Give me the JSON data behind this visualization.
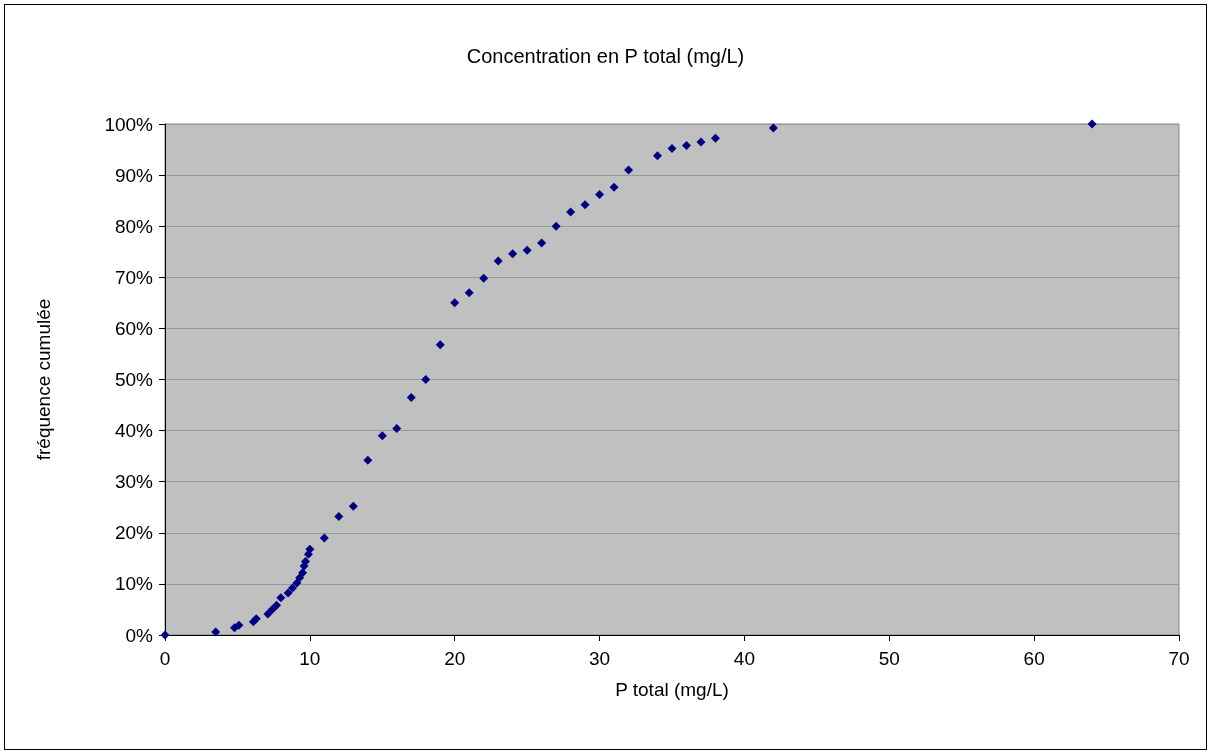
{
  "chart_data": {
    "type": "scatter",
    "title": "Concentration en P total (mg/L)",
    "xlabel": "P total (mg/L)",
    "ylabel": "fréquence cumulée",
    "x": [
      0,
      3.5,
      4.8,
      5.1,
      6.1,
      6.3,
      7.1,
      7.4,
      7.7,
      8,
      8.5,
      8.8,
      9.1,
      9.3,
      9.5,
      9.6,
      9.7,
      9.9,
      10,
      11,
      12,
      13,
      14,
      15,
      16,
      17,
      18,
      19,
      20,
      21,
      22,
      23,
      24,
      25,
      26,
      27,
      28,
      29,
      30,
      31,
      32,
      34,
      35,
      36,
      37,
      38,
      42,
      64
    ],
    "values": [
      0,
      0.6,
      1.4,
      1.9,
      2.6,
      3.2,
      4.1,
      5,
      5.8,
      7.3,
      8.2,
      9.2,
      10.2,
      11.2,
      12.2,
      13.5,
      14.4,
      15.8,
      16.8,
      19,
      23.2,
      25.2,
      34.2,
      39,
      40.4,
      46.5,
      50,
      56.8,
      65,
      67,
      69.8,
      73.2,
      74.6,
      75.3,
      76.7,
      80,
      82.8,
      84.2,
      86.2,
      87.6,
      91,
      93.8,
      95.2,
      95.8,
      96.5,
      97.2,
      99.2,
      100
    ],
    "color": "#000080",
    "marker": "diamond",
    "grid": "y",
    "xlim": [
      0,
      70
    ],
    "xticks": [
      0,
      10,
      20,
      30,
      40,
      50,
      60,
      70
    ],
    "ylim": [
      0,
      100
    ],
    "yticks": [
      {
        "value": 0,
        "label": "0%"
      },
      {
        "value": 10,
        "label": "10%"
      },
      {
        "value": 20,
        "label": "20%"
      },
      {
        "value": 30,
        "label": "30%"
      },
      {
        "value": 40,
        "label": "40%"
      },
      {
        "value": 50,
        "label": "50%"
      },
      {
        "value": 60,
        "label": "60%"
      },
      {
        "value": 70,
        "label": "70%"
      },
      {
        "value": 80,
        "label": "80%"
      },
      {
        "value": 90,
        "label": "90%"
      },
      {
        "value": 100,
        "label": "100%"
      }
    ]
  }
}
